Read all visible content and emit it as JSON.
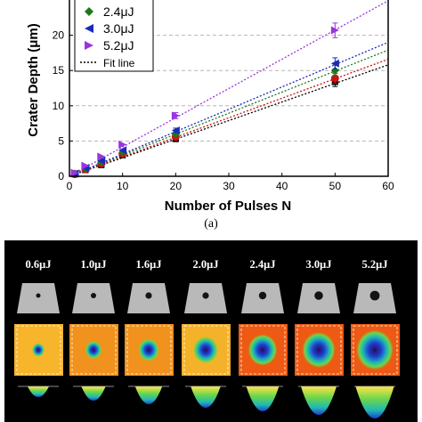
{
  "chart_data": {
    "type": "scatter",
    "xlabel": "Number of Pulses N",
    "ylabel": "Crater Depth (μm)",
    "xlim": [
      0,
      60
    ],
    "ylim": [
      0,
      25
    ],
    "x_ticks": [
      "0",
      "10",
      "20",
      "30",
      "40",
      "50",
      "60"
    ],
    "y_ticks": [
      "0",
      "5",
      "10",
      "15",
      "20"
    ],
    "grid": "horizontal dashed",
    "legend_position": "top-left",
    "legend": [
      {
        "label": "2.4μJ",
        "marker": "diamond",
        "color": "#1a7a1a"
      },
      {
        "label": "3.0μJ",
        "marker": "triangle-left",
        "color": "#1a2ab8"
      },
      {
        "label": "5.2μJ",
        "marker": "triangle-right",
        "color": "#9a33e0"
      },
      {
        "label": "Fit line",
        "marker": "dotted-line",
        "color": "#000000"
      }
    ],
    "x": [
      1,
      3,
      6,
      10,
      20,
      50
    ],
    "series": [
      {
        "name": "",
        "color": "#000000",
        "marker": "square",
        "values": [
          0.3,
          0.9,
          1.6,
          3.0,
          5.3,
          13.4
        ],
        "fit_end": 15.8
      },
      {
        "name": "",
        "color": "#cc1111",
        "marker": "circle",
        "values": [
          0.3,
          1.0,
          1.8,
          3.2,
          5.6,
          13.9
        ],
        "fit_end": 16.6
      },
      {
        "name": "2.4μJ",
        "color": "#1a7a1a",
        "marker": "diamond",
        "values": [
          0.4,
          1.1,
          2.0,
          3.4,
          6.0,
          15.0
        ],
        "fit_end": 17.9
      },
      {
        "name": "3.0μJ",
        "color": "#1a2ab8",
        "marker": "triangle-left",
        "values": [
          0.4,
          1.2,
          2.2,
          3.7,
          6.5,
          16.0
        ],
        "fit_end": 19.0
      },
      {
        "name": "5.2μJ",
        "color": "#9a33e0",
        "marker": "triangle-right",
        "values": [
          0.5,
          1.5,
          2.8,
          4.5,
          8.6,
          20.7
        ],
        "fit_end": 24.9
      }
    ]
  },
  "caption": "(a)",
  "energies": [
    "0.6μJ",
    "1.0μJ",
    "1.6μJ",
    "2.0μJ",
    "2.4μJ",
    "3.0μJ",
    "5.2μJ"
  ]
}
